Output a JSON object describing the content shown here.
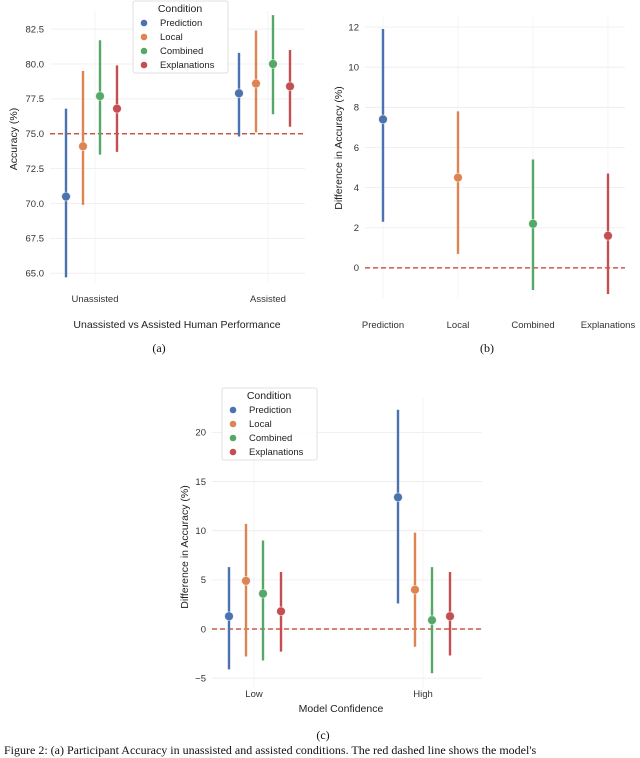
{
  "colors": {
    "Prediction": "#4c72b0",
    "Local": "#dd8452",
    "Combined": "#55a868",
    "Explanations": "#c44e52",
    "reference": "#c0392b"
  },
  "caption": "Figure 2: (a) Participant Accuracy in unassisted and assisted conditions. The red dashed line shows the model's",
  "chart_data": [
    {
      "id": "a",
      "panel_label": "(a)",
      "type": "scatter",
      "subtype": "pointplot-errorbars",
      "xlabel": "Unassisted vs Assisted Human Performance",
      "ylabel": "Accuracy (%)",
      "categories": [
        "Unassisted",
        "Assisted"
      ],
      "ylim": [
        64.3,
        83.8
      ],
      "yticks": [
        "65.0",
        "67.5",
        "70.0",
        "72.5",
        "75.0",
        "77.5",
        "80.0",
        "82.5"
      ],
      "reference_line": 75.0,
      "legend": {
        "title": "Condition",
        "position": "top-center",
        "entries": [
          "Prediction",
          "Local",
          "Combined",
          "Explanations"
        ]
      },
      "series": [
        {
          "name": "Prediction",
          "values": [
            70.5,
            77.9
          ],
          "lower": [
            64.7,
            74.8
          ],
          "upper": [
            76.8,
            80.8
          ]
        },
        {
          "name": "Local",
          "values": [
            74.1,
            78.6
          ],
          "lower": [
            69.9,
            75.1
          ],
          "upper": [
            79.5,
            82.4
          ]
        },
        {
          "name": "Combined",
          "values": [
            77.7,
            80.0
          ],
          "lower": [
            73.5,
            76.4
          ],
          "upper": [
            81.7,
            83.5
          ]
        },
        {
          "name": "Explanations",
          "values": [
            76.8,
            78.4
          ],
          "lower": [
            73.7,
            75.5
          ],
          "upper": [
            79.9,
            81.0
          ]
        }
      ]
    },
    {
      "id": "b",
      "panel_label": "(b)",
      "type": "scatter",
      "subtype": "pointplot-errorbars",
      "xlabel": "",
      "ylabel": "Difference in Accuracy (%)",
      "categories": [
        "Prediction",
        "Local",
        "Combined",
        "Explanations"
      ],
      "ylim": [
        -1.5,
        12.5
      ],
      "yticks": [
        "0",
        "2",
        "4",
        "6",
        "8",
        "10",
        "12"
      ],
      "reference_line": 0,
      "series": [
        {
          "name": "Prediction",
          "values": [
            7.4
          ],
          "lower": [
            2.3
          ],
          "upper": [
            11.9
          ]
        },
        {
          "name": "Local",
          "values": [
            4.5
          ],
          "lower": [
            0.7
          ],
          "upper": [
            7.8
          ]
        },
        {
          "name": "Combined",
          "values": [
            2.2
          ],
          "lower": [
            -1.1
          ],
          "upper": [
            5.4
          ]
        },
        {
          "name": "Explanations",
          "values": [
            1.6
          ],
          "lower": [
            -1.3
          ],
          "upper": [
            4.7
          ]
        }
      ]
    },
    {
      "id": "c",
      "panel_label": "(c)",
      "type": "scatter",
      "subtype": "pointplot-errorbars",
      "xlabel": "Model Confidence",
      "ylabel": "Difference in Accuracy (%)",
      "categories": [
        "Low",
        "High"
      ],
      "ylim": [
        -6.0,
        23.5
      ],
      "yticks": [
        "−5",
        "0",
        "5",
        "10",
        "15",
        "20"
      ],
      "reference_line": 0,
      "legend": {
        "title": "Condition",
        "position": "top-left",
        "entries": [
          "Prediction",
          "Local",
          "Combined",
          "Explanations"
        ]
      },
      "series": [
        {
          "name": "Prediction",
          "values": [
            1.3,
            13.4
          ],
          "lower": [
            -4.1,
            2.6
          ],
          "upper": [
            6.3,
            22.3
          ]
        },
        {
          "name": "Local",
          "values": [
            4.9,
            4.0
          ],
          "lower": [
            -2.8,
            -1.8
          ],
          "upper": [
            10.7,
            9.8
          ]
        },
        {
          "name": "Combined",
          "values": [
            3.6,
            0.9
          ],
          "lower": [
            -3.2,
            -4.5
          ],
          "upper": [
            9.0,
            6.3
          ]
        },
        {
          "name": "Explanations",
          "values": [
            1.8,
            1.3
          ],
          "lower": [
            -2.3,
            -2.7
          ],
          "upper": [
            5.8,
            5.8
          ]
        }
      ]
    }
  ]
}
